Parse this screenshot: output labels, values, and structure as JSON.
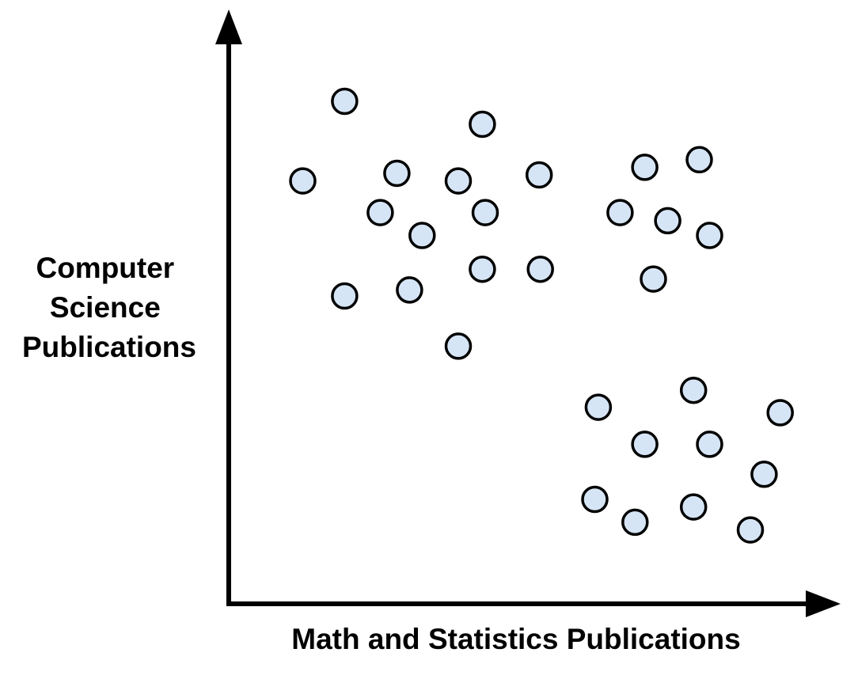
{
  "chart_data": {
    "type": "scatter",
    "title": "",
    "xlabel": "Math and Statistics Publications",
    "ylabel_lines": [
      "Computer",
      "Science",
      "Publications"
    ],
    "xlim": [
      0,
      100
    ],
    "ylim": [
      0,
      100
    ],
    "grid": false,
    "legend": "none",
    "axis_ticks": false,
    "point_fill": "#d6e5f5",
    "point_stroke": "#000000",
    "axis_color": "#000000",
    "series": [
      {
        "points": [
          {
            "x": 10.0,
            "y": 74.8
          },
          {
            "x": 17.3,
            "y": 89.4
          },
          {
            "x": 26.4,
            "y": 76.2
          },
          {
            "x": 23.5,
            "y": 69.0
          },
          {
            "x": 37.1,
            "y": 74.8
          },
          {
            "x": 41.3,
            "y": 85.2
          },
          {
            "x": 41.8,
            "y": 69.0
          },
          {
            "x": 30.8,
            "y": 64.8
          },
          {
            "x": 51.2,
            "y": 75.9
          },
          {
            "x": 41.3,
            "y": 58.6
          },
          {
            "x": 51.4,
            "y": 58.6
          },
          {
            "x": 17.3,
            "y": 53.7
          },
          {
            "x": 28.6,
            "y": 54.8
          },
          {
            "x": 37.1,
            "y": 44.5
          }
        ]
      },
      {
        "points": [
          {
            "x": 69.6,
            "y": 77.3
          },
          {
            "x": 79.1,
            "y": 78.7
          },
          {
            "x": 65.3,
            "y": 69.0
          },
          {
            "x": 73.6,
            "y": 67.5
          },
          {
            "x": 80.9,
            "y": 64.8
          },
          {
            "x": 71.1,
            "y": 56.8
          }
        ]
      },
      {
        "points": [
          {
            "x": 61.5,
            "y": 33.3
          },
          {
            "x": 78.1,
            "y": 36.4
          },
          {
            "x": 93.2,
            "y": 32.3
          },
          {
            "x": 69.6,
            "y": 26.5
          },
          {
            "x": 80.9,
            "y": 26.5
          },
          {
            "x": 90.4,
            "y": 21.0
          },
          {
            "x": 60.9,
            "y": 16.4
          },
          {
            "x": 67.9,
            "y": 12.2
          },
          {
            "x": 78.1,
            "y": 15.0
          },
          {
            "x": 88.0,
            "y": 10.8
          }
        ]
      }
    ]
  }
}
